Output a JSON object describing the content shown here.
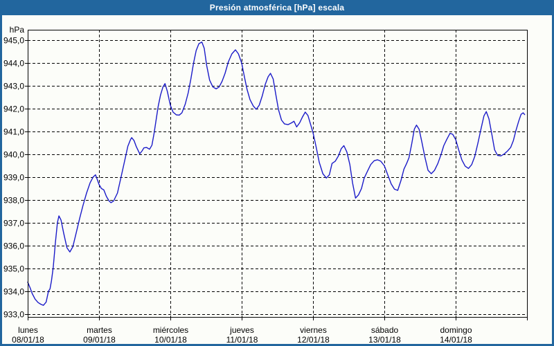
{
  "window": {
    "title": "Presión atmosférica [hPa] escala"
  },
  "colors": {
    "titlebar_bg": "#22669e",
    "titlebar_text": "#ffffff",
    "frame": "#22669e",
    "plot_background": "#fcfdf9",
    "grid": "#000000",
    "axis": "#000000",
    "label_text": "#000000",
    "line": "#1a1ac8"
  },
  "chart_data": {
    "type": "line",
    "title": "Presión atmosférica [hPa] escala",
    "ylabel": "hPa",
    "y_unit_label": "hPa",
    "ylim": [
      932.87,
      945.46
    ],
    "grid": "dashed",
    "legend": null,
    "yticks": [
      {
        "value": 945,
        "label": "945,0"
      },
      {
        "value": 944,
        "label": "944,0"
      },
      {
        "value": 943,
        "label": "943,0"
      },
      {
        "value": 942,
        "label": "942,0"
      },
      {
        "value": 941,
        "label": "941,0"
      },
      {
        "value": 940,
        "label": "940,0"
      },
      {
        "value": 939,
        "label": "939,0"
      },
      {
        "value": 938,
        "label": "938,0"
      },
      {
        "value": 937,
        "label": "937,0"
      },
      {
        "value": 936,
        "label": "936,0"
      },
      {
        "value": 935,
        "label": "935,0"
      },
      {
        "value": 934,
        "label": "934,0"
      },
      {
        "value": 933,
        "label": "933,0"
      }
    ],
    "x_axis": {
      "total_hours": 168,
      "hours_per_day": 24,
      "days": [
        {
          "name": "lunes",
          "date": "08/01/18"
        },
        {
          "name": "martes",
          "date": "09/01/18"
        },
        {
          "name": "miércoles",
          "date": "10/01/18"
        },
        {
          "name": "jueves",
          "date": "11/01/18"
        },
        {
          "name": "viernes",
          "date": "12/01/18"
        },
        {
          "name": "sábado",
          "date": "13/01/18"
        },
        {
          "name": "domingo",
          "date": "14/01/18"
        }
      ]
    },
    "series": [
      {
        "name": "Presión atmosférica",
        "unit": "hPa",
        "color": "#1a1ac8",
        "points": [
          [
            0,
            934.4
          ],
          [
            0.8,
            934.15
          ],
          [
            1.5,
            933.9
          ],
          [
            2.5,
            933.65
          ],
          [
            3.5,
            933.5
          ],
          [
            4.5,
            933.42
          ],
          [
            5.3,
            933.38
          ],
          [
            6.2,
            933.52
          ],
          [
            7,
            934
          ],
          [
            7.5,
            934.1
          ],
          [
            8,
            934.45
          ],
          [
            8.6,
            935.05
          ],
          [
            9.3,
            936.1
          ],
          [
            10,
            937
          ],
          [
            10.5,
            937.3
          ],
          [
            11.2,
            937.12
          ],
          [
            12.1,
            936.55
          ],
          [
            13.2,
            935.9
          ],
          [
            14.2,
            935.72
          ],
          [
            15.2,
            935.95
          ],
          [
            16.3,
            936.55
          ],
          [
            17.5,
            937.2
          ],
          [
            18.6,
            937.75
          ],
          [
            19.8,
            938.3
          ],
          [
            21,
            938.75
          ],
          [
            22,
            939
          ],
          [
            22.8,
            939.1
          ],
          [
            23.4,
            938.9
          ],
          [
            24,
            938.68
          ],
          [
            24.8,
            938.5
          ],
          [
            25.6,
            938.44
          ],
          [
            26.5,
            938.15
          ],
          [
            27.4,
            937.95
          ],
          [
            28,
            937.88
          ],
          [
            28.9,
            937.95
          ],
          [
            30.2,
            938.3
          ],
          [
            31.4,
            939
          ],
          [
            32.6,
            939.7
          ],
          [
            33.7,
            940.35
          ],
          [
            34.6,
            940.65
          ],
          [
            35,
            940.73
          ],
          [
            35.8,
            940.6
          ],
          [
            36.5,
            940.35
          ],
          [
            37.7,
            940.02
          ],
          [
            38.5,
            940.15
          ],
          [
            39.1,
            940.28
          ],
          [
            40,
            940.3
          ],
          [
            41,
            940.22
          ],
          [
            41.8,
            940.4
          ],
          [
            42.5,
            940.9
          ],
          [
            43.2,
            941.5
          ],
          [
            43.9,
            942.1
          ],
          [
            44.7,
            942.6
          ],
          [
            45.5,
            942.95
          ],
          [
            46.2,
            943.1
          ],
          [
            47,
            942.75
          ],
          [
            48,
            942.15
          ],
          [
            48.9,
            941.85
          ],
          [
            50,
            941.73
          ],
          [
            51,
            941.72
          ],
          [
            51.9,
            941.82
          ],
          [
            53,
            942.2
          ],
          [
            54,
            942.7
          ],
          [
            54.9,
            943.3
          ],
          [
            55.8,
            944
          ],
          [
            56.7,
            944.55
          ],
          [
            57.6,
            944.85
          ],
          [
            58.6,
            944.92
          ],
          [
            59.4,
            944.65
          ],
          [
            60.2,
            943.9
          ],
          [
            61.2,
            943.25
          ],
          [
            62.3,
            942.95
          ],
          [
            63.4,
            942.87
          ],
          [
            64.4,
            942.95
          ],
          [
            65.4,
            943.2
          ],
          [
            66.4,
            943.55
          ],
          [
            67.5,
            944.05
          ],
          [
            68.7,
            944.4
          ],
          [
            69.9,
            944.58
          ],
          [
            70.9,
            944.4
          ],
          [
            72,
            944
          ],
          [
            72.9,
            943.4
          ],
          [
            73.8,
            942.85
          ],
          [
            74.8,
            942.4
          ],
          [
            75.9,
            942.12
          ],
          [
            76.9,
            941.97
          ],
          [
            77.9,
            942.15
          ],
          [
            78.9,
            942.55
          ],
          [
            79.9,
            943.05
          ],
          [
            80.9,
            943.4
          ],
          [
            81.7,
            943.55
          ],
          [
            82.6,
            943.3
          ],
          [
            83.5,
            942.6
          ],
          [
            84.4,
            941.95
          ],
          [
            85.4,
            941.5
          ],
          [
            86.4,
            941.33
          ],
          [
            87.6,
            941.3
          ],
          [
            88.8,
            941.38
          ],
          [
            89.6,
            941.45
          ],
          [
            90.5,
            941.2
          ],
          [
            91.5,
            941.38
          ],
          [
            92.5,
            941.65
          ],
          [
            93.4,
            941.85
          ],
          [
            94.3,
            941.7
          ],
          [
            95.2,
            941.3
          ],
          [
            96,
            940.95
          ],
          [
            97,
            940.35
          ],
          [
            98.1,
            939.65
          ],
          [
            99.3,
            939.15
          ],
          [
            100.5,
            938.96
          ],
          [
            101.5,
            939.1
          ],
          [
            102.4,
            939.6
          ],
          [
            103.5,
            939.7
          ],
          [
            104.5,
            939.92
          ],
          [
            105.5,
            940.25
          ],
          [
            106.4,
            940.38
          ],
          [
            107.4,
            940.1
          ],
          [
            108.4,
            939.55
          ],
          [
            109.3,
            938.75
          ],
          [
            110.3,
            938.08
          ],
          [
            111.3,
            938.22
          ],
          [
            112.3,
            938.5
          ],
          [
            113.2,
            938.95
          ],
          [
            114.3,
            939.25
          ],
          [
            115.4,
            939.55
          ],
          [
            116.6,
            939.72
          ],
          [
            117.7,
            939.76
          ],
          [
            118.8,
            939.7
          ],
          [
            120,
            939.5
          ],
          [
            121.1,
            939.12
          ],
          [
            122.3,
            938.7
          ],
          [
            123.4,
            938.47
          ],
          [
            124.5,
            938.42
          ],
          [
            125.6,
            938.85
          ],
          [
            126.6,
            939.35
          ],
          [
            127.5,
            939.6
          ],
          [
            128.3,
            939.85
          ],
          [
            129.2,
            940.45
          ],
          [
            130.1,
            941.1
          ],
          [
            130.8,
            941.28
          ],
          [
            131.7,
            941.1
          ],
          [
            132.6,
            940.55
          ],
          [
            133.6,
            939.9
          ],
          [
            134.7,
            939.3
          ],
          [
            135.8,
            939.15
          ],
          [
            136.9,
            939.3
          ],
          [
            138,
            939.6
          ],
          [
            139.1,
            940
          ],
          [
            140,
            940.38
          ],
          [
            141,
            940.65
          ],
          [
            142.1,
            940.92
          ],
          [
            143,
            940.88
          ],
          [
            144,
            940.65
          ],
          [
            145,
            940.2
          ],
          [
            146.1,
            939.75
          ],
          [
            147.2,
            939.48
          ],
          [
            148.3,
            939.38
          ],
          [
            149.4,
            939.55
          ],
          [
            150.4,
            939.9
          ],
          [
            151.5,
            940.5
          ],
          [
            152.5,
            941.1
          ],
          [
            153.5,
            941.68
          ],
          [
            154.3,
            941.87
          ],
          [
            155.2,
            941.55
          ],
          [
            156.2,
            940.85
          ],
          [
            157.1,
            940.2
          ],
          [
            158.1,
            939.95
          ],
          [
            159.2,
            939.93
          ],
          [
            160.4,
            940.02
          ],
          [
            161.5,
            940.15
          ],
          [
            162.5,
            940.3
          ],
          [
            163.4,
            940.6
          ],
          [
            164.3,
            941.05
          ],
          [
            165.2,
            941.45
          ],
          [
            166,
            941.75
          ],
          [
            166.7,
            941.82
          ],
          [
            167.2,
            941.74
          ]
        ]
      }
    ]
  }
}
